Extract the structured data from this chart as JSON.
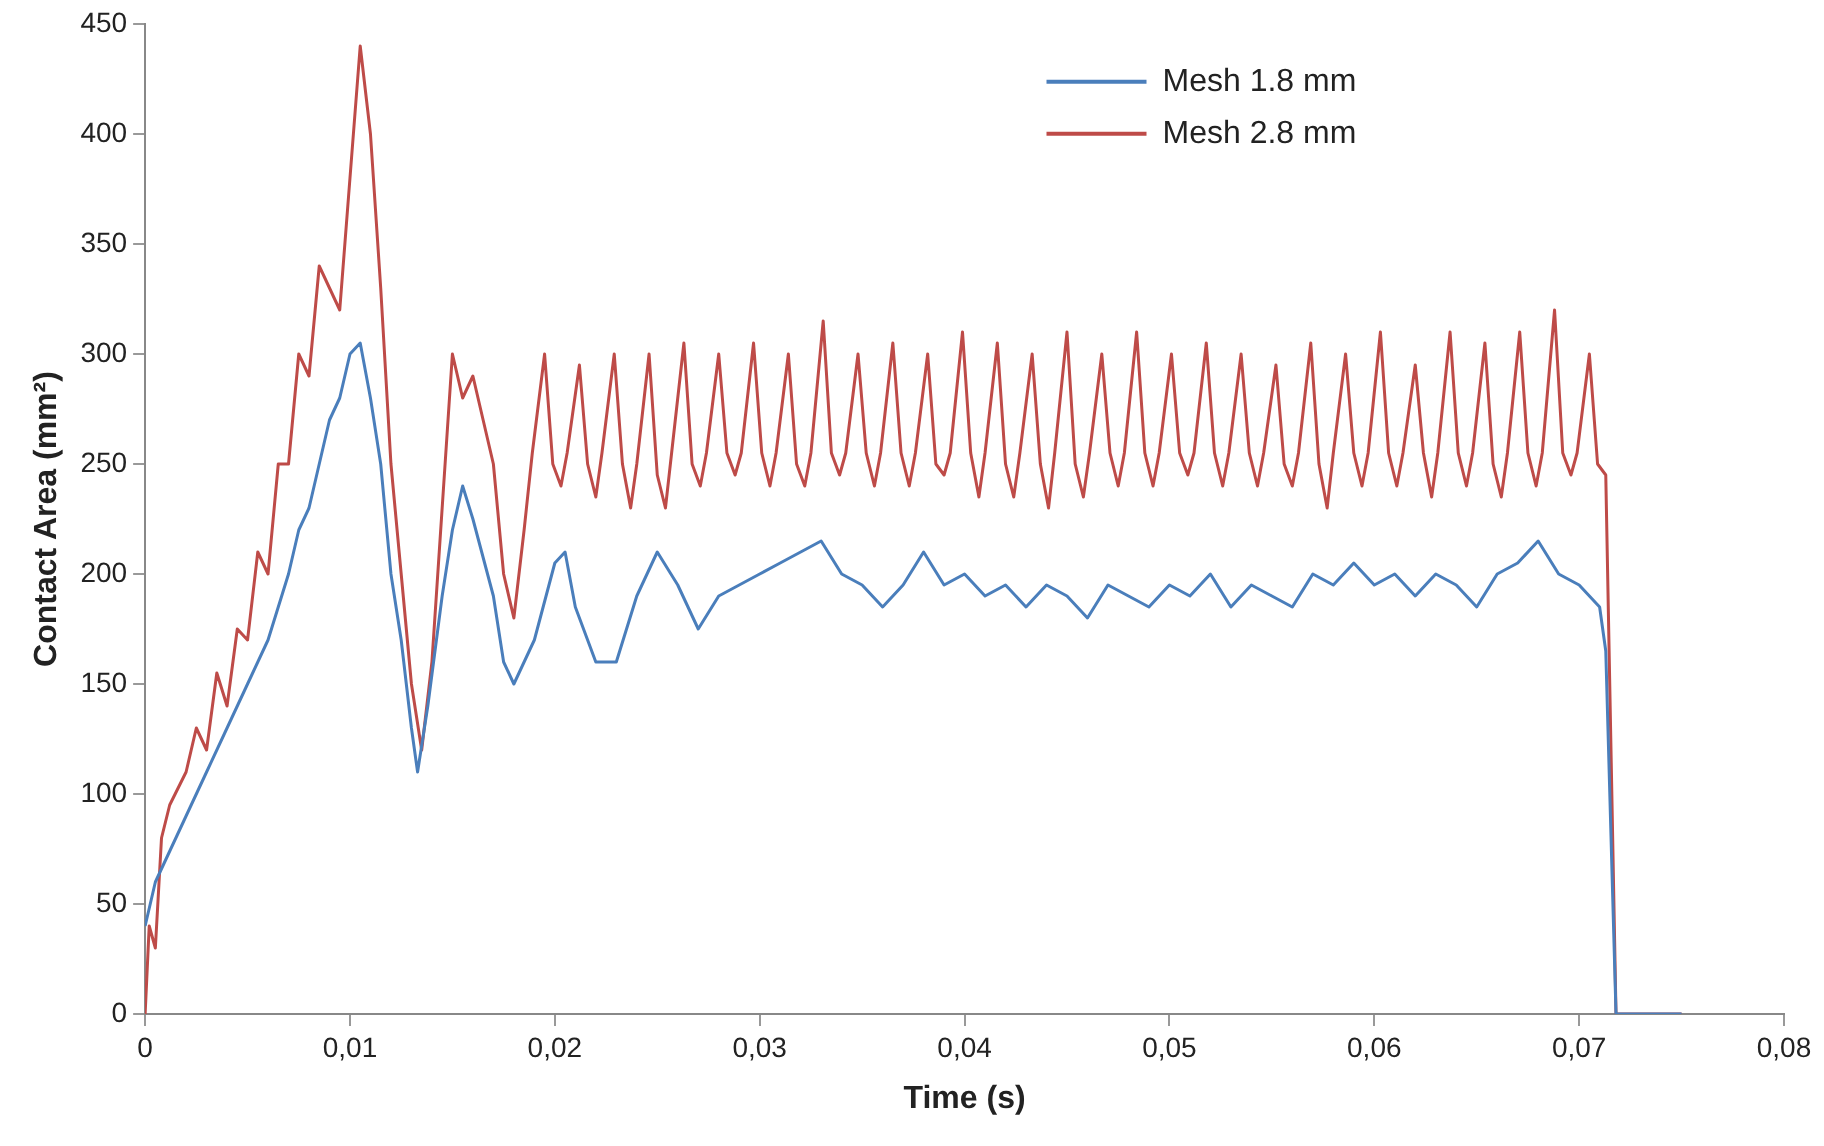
{
  "chart_data": {
    "type": "line",
    "xlabel": "Time (s)",
    "ylabel": "Contact Area (mm²)",
    "xlim": [
      0,
      0.08
    ],
    "ylim": [
      0,
      450
    ],
    "xticks": [
      0,
      {
        "value": 0.01,
        "label": "0,01"
      },
      {
        "value": 0.02,
        "label": "0,02"
      },
      {
        "value": 0.03,
        "label": "0,03"
      },
      {
        "value": 0.04,
        "label": "0,04"
      },
      {
        "value": 0.05,
        "label": "0,05"
      },
      {
        "value": 0.06,
        "label": "0,06"
      },
      {
        "value": 0.07,
        "label": "0,07"
      },
      {
        "value": 0.08,
        "label": "0,08"
      }
    ],
    "yticks": [
      0,
      50,
      100,
      150,
      200,
      250,
      300,
      350,
      400,
      450
    ],
    "grid": false,
    "legend": "top right",
    "marker": "none",
    "line_style": "solid",
    "series": [
      {
        "name": "Mesh 1.8 mm",
        "color": "#4a7ebb",
        "x": [
          0,
          0.0005,
          0.001,
          0.002,
          0.003,
          0.004,
          0.005,
          0.006,
          0.007,
          0.0075,
          0.008,
          0.009,
          0.0095,
          0.01,
          0.0105,
          0.011,
          0.0115,
          0.012,
          0.0125,
          0.013,
          0.0133,
          0.0138,
          0.0145,
          0.015,
          0.0155,
          0.016,
          0.017,
          0.0175,
          0.018,
          0.019,
          0.02,
          0.0205,
          0.021,
          0.022,
          0.023,
          0.024,
          0.025,
          0.026,
          0.027,
          0.028,
          0.029,
          0.03,
          0.031,
          0.032,
          0.033,
          0.034,
          0.035,
          0.036,
          0.037,
          0.038,
          0.039,
          0.04,
          0.041,
          0.042,
          0.043,
          0.044,
          0.045,
          0.046,
          0.047,
          0.048,
          0.049,
          0.05,
          0.051,
          0.052,
          0.053,
          0.054,
          0.055,
          0.056,
          0.057,
          0.058,
          0.059,
          0.06,
          0.061,
          0.062,
          0.063,
          0.064,
          0.065,
          0.066,
          0.067,
          0.068,
          0.069,
          0.07,
          0.071,
          0.0713,
          0.0718,
          0.075
        ],
        "values": [
          40,
          60,
          70,
          90,
          110,
          130,
          150,
          170,
          200,
          220,
          230,
          270,
          280,
          300,
          305,
          280,
          250,
          200,
          170,
          130,
          110,
          140,
          190,
          220,
          240,
          225,
          190,
          160,
          150,
          170,
          205,
          210,
          185,
          160,
          160,
          190,
          210,
          195,
          175,
          190,
          195,
          200,
          205,
          210,
          215,
          200,
          195,
          185,
          195,
          210,
          195,
          200,
          190,
          195,
          185,
          195,
          190,
          180,
          195,
          190,
          185,
          195,
          190,
          200,
          185,
          195,
          190,
          185,
          200,
          195,
          205,
          195,
          200,
          190,
          200,
          195,
          185,
          200,
          205,
          215,
          200,
          195,
          185,
          165,
          0,
          0
        ]
      },
      {
        "name": "Mesh 2.8 mm",
        "color": "#be4b48",
        "x": [
          0,
          0.0002,
          0.0005,
          0.0008,
          0.0012,
          0.002,
          0.0025,
          0.003,
          0.0035,
          0.004,
          0.0045,
          0.005,
          0.0055,
          0.006,
          0.0065,
          0.007,
          0.0075,
          0.008,
          0.0085,
          0.009,
          0.0095,
          0.01,
          0.0105,
          0.011,
          0.0115,
          0.012,
          0.0125,
          0.013,
          0.0135,
          0.014,
          0.0145,
          0.015,
          0.0155,
          0.016,
          0.0165,
          0.017,
          0.0175,
          0.018,
          0.0185,
          0.0189,
          0.0195,
          0.0199,
          0.0203,
          0.0206,
          0.0212,
          0.0216,
          0.022,
          0.0223,
          0.0229,
          0.0233,
          0.0237,
          0.024,
          0.0246,
          0.025,
          0.0254,
          0.0257,
          0.0263,
          0.0267,
          0.0271,
          0.0274,
          0.028,
          0.0284,
          0.0288,
          0.0291,
          0.0297,
          0.0301,
          0.0305,
          0.0308,
          0.0314,
          0.0318,
          0.0322,
          0.0325,
          0.0331,
          0.0335,
          0.0339,
          0.0342,
          0.0348,
          0.0352,
          0.0356,
          0.0359,
          0.0365,
          0.0369,
          0.0373,
          0.0376,
          0.0382,
          0.0386,
          0.039,
          0.0393,
          0.0399,
          0.0403,
          0.0407,
          0.041,
          0.0416,
          0.042,
          0.0424,
          0.0427,
          0.0433,
          0.0437,
          0.0441,
          0.0444,
          0.045,
          0.0454,
          0.0458,
          0.0461,
          0.0467,
          0.0471,
          0.0475,
          0.0478,
          0.0484,
          0.0488,
          0.0492,
          0.0495,
          0.0501,
          0.0505,
          0.0509,
          0.0512,
          0.0518,
          0.0522,
          0.0526,
          0.0529,
          0.0535,
          0.0539,
          0.0543,
          0.0546,
          0.0552,
          0.0556,
          0.056,
          0.0563,
          0.0569,
          0.0573,
          0.0577,
          0.058,
          0.0586,
          0.059,
          0.0594,
          0.0597,
          0.0603,
          0.0607,
          0.0611,
          0.0614,
          0.062,
          0.0624,
          0.0628,
          0.0631,
          0.0637,
          0.0641,
          0.0645,
          0.0648,
          0.0654,
          0.0658,
          0.0662,
          0.0665,
          0.0671,
          0.0675,
          0.0679,
          0.0682,
          0.0688,
          0.0692,
          0.0696,
          0.0699,
          0.0705,
          0.0709,
          0.0713,
          0.0718,
          0.075
        ],
        "values": [
          0,
          40,
          30,
          80,
          95,
          110,
          130,
          120,
          155,
          140,
          175,
          170,
          210,
          200,
          250,
          250,
          300,
          290,
          340,
          330,
          320,
          380,
          440,
          400,
          330,
          250,
          200,
          150,
          120,
          160,
          230,
          300,
          280,
          290,
          270,
          250,
          200,
          180,
          220,
          255,
          300,
          250,
          240,
          255,
          295,
          250,
          235,
          255,
          300,
          250,
          230,
          250,
          300,
          245,
          230,
          255,
          305,
          250,
          240,
          255,
          300,
          255,
          245,
          255,
          305,
          255,
          240,
          255,
          300,
          250,
          240,
          255,
          315,
          255,
          245,
          255,
          300,
          255,
          240,
          255,
          305,
          255,
          240,
          255,
          300,
          250,
          245,
          255,
          310,
          255,
          235,
          255,
          305,
          250,
          235,
          255,
          300,
          250,
          230,
          255,
          310,
          250,
          235,
          255,
          300,
          255,
          240,
          255,
          310,
          255,
          240,
          255,
          300,
          255,
          245,
          255,
          305,
          255,
          240,
          255,
          300,
          255,
          240,
          255,
          295,
          250,
          240,
          255,
          305,
          250,
          230,
          255,
          300,
          255,
          240,
          255,
          310,
          255,
          240,
          255,
          295,
          255,
          235,
          255,
          310,
          255,
          240,
          255,
          305,
          250,
          235,
          255,
          310,
          255,
          240,
          255,
          320,
          255,
          245,
          255,
          300,
          250,
          245,
          0,
          0
        ]
      }
    ]
  }
}
